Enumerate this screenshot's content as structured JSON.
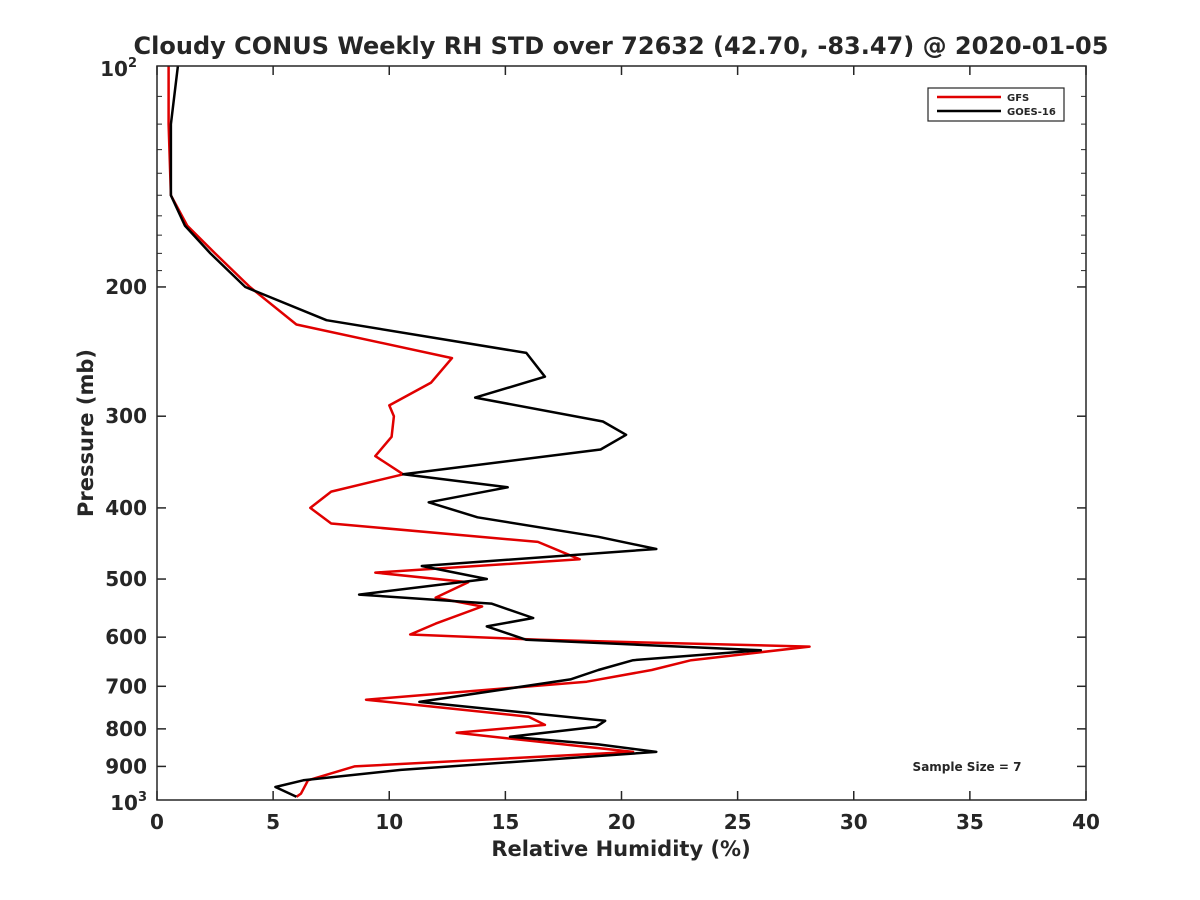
{
  "chart_data": {
    "type": "line",
    "title": "Cloudy CONUS Weekly RH STD over 72632 (42.70, -83.47) @ 2020-01-05",
    "xlabel": "Relative Humidity (%)",
    "ylabel": "Pressure (mb)",
    "xlim": [
      0,
      40
    ],
    "ylim": [
      100,
      1000
    ],
    "y_scale": "log",
    "y_reversed": true,
    "x_ticks": [
      0,
      5,
      10,
      15,
      20,
      25,
      30,
      35,
      40
    ],
    "x_tick_labels": [
      "0",
      "5",
      "10",
      "15",
      "20",
      "25",
      "30",
      "35",
      "40"
    ],
    "y_ticks": [
      200,
      300,
      400,
      500,
      600,
      700,
      800,
      900
    ],
    "y_tick_labels": [
      "200",
      "300",
      "400",
      "500",
      "600",
      "700",
      "800",
      "900"
    ],
    "y_tick_top": {
      "base": "10",
      "exp": "2"
    },
    "y_tick_bottom": {
      "base": "10",
      "exp": "3"
    },
    "grid": false,
    "legend_position": "top-right",
    "annotation": "Sample Size = 7",
    "series": [
      {
        "name": "GFS",
        "color": "#e00000",
        "points": [
          [
            0.5,
            100
          ],
          [
            0.5,
            120
          ],
          [
            0.6,
            150
          ],
          [
            1.3,
            165
          ],
          [
            2.5,
            180
          ],
          [
            4.0,
            200
          ],
          [
            6.0,
            225
          ],
          [
            12.7,
            250
          ],
          [
            11.8,
            270
          ],
          [
            10.0,
            290
          ],
          [
            10.2,
            300
          ],
          [
            10.1,
            320
          ],
          [
            9.4,
            340
          ],
          [
            10.6,
            360
          ],
          [
            7.5,
            380
          ],
          [
            6.6,
            400
          ],
          [
            7.5,
            420
          ],
          [
            16.4,
            445
          ],
          [
            18.2,
            470
          ],
          [
            9.4,
            490
          ],
          [
            13.4,
            505
          ],
          [
            12.0,
            530
          ],
          [
            14.0,
            545
          ],
          [
            12.0,
            575
          ],
          [
            10.9,
            595
          ],
          [
            16.5,
            605
          ],
          [
            28.1,
            618
          ],
          [
            23.0,
            645
          ],
          [
            21.3,
            665
          ],
          [
            18.5,
            690
          ],
          [
            9.0,
            730
          ],
          [
            16.0,
            770
          ],
          [
            16.7,
            790
          ],
          [
            12.9,
            810
          ],
          [
            20.5,
            860
          ],
          [
            8.5,
            900
          ],
          [
            6.5,
            940
          ],
          [
            6.2,
            980
          ],
          [
            6.0,
            990
          ]
        ]
      },
      {
        "name": "GOES-16",
        "color": "#000000",
        "points": [
          [
            0.9,
            100
          ],
          [
            0.6,
            120
          ],
          [
            0.6,
            150
          ],
          [
            1.2,
            165
          ],
          [
            2.3,
            180
          ],
          [
            3.8,
            200
          ],
          [
            7.3,
            222
          ],
          [
            15.9,
            246
          ],
          [
            16.7,
            265
          ],
          [
            13.7,
            283
          ],
          [
            19.2,
            305
          ],
          [
            20.2,
            318
          ],
          [
            19.1,
            333
          ],
          [
            10.6,
            360
          ],
          [
            15.1,
            375
          ],
          [
            11.7,
            393
          ],
          [
            13.8,
            412
          ],
          [
            19.0,
            438
          ],
          [
            21.5,
            455
          ],
          [
            11.4,
            480
          ],
          [
            14.2,
            500
          ],
          [
            8.7,
            525
          ],
          [
            14.4,
            540
          ],
          [
            16.2,
            565
          ],
          [
            14.2,
            580
          ],
          [
            15.9,
            605
          ],
          [
            26.0,
            625
          ],
          [
            20.5,
            645
          ],
          [
            19.0,
            665
          ],
          [
            17.8,
            685
          ],
          [
            11.3,
            735
          ],
          [
            19.3,
            780
          ],
          [
            18.9,
            795
          ],
          [
            15.2,
            820
          ],
          [
            19.0,
            840
          ],
          [
            21.5,
            860
          ],
          [
            10.5,
            910
          ],
          [
            6.3,
            940
          ],
          [
            5.1,
            960
          ],
          [
            6.0,
            990
          ]
        ]
      }
    ]
  }
}
